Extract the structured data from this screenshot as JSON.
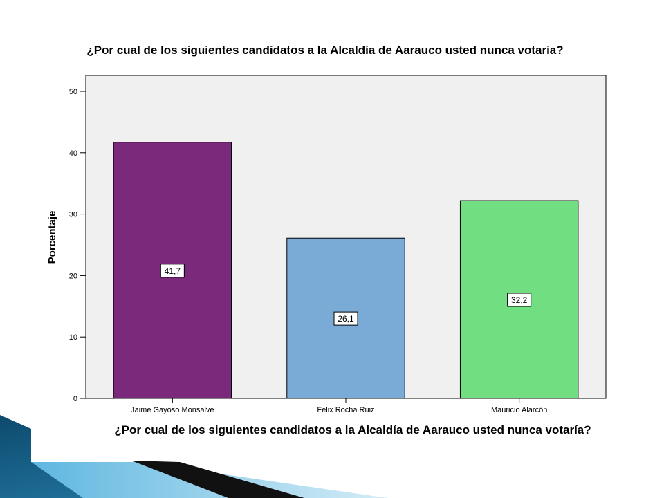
{
  "chart_data": {
    "type": "bar",
    "title": "¿Por cual de los siguientes candidatos a la Alcaldía de Aarauco usted nunca votaría?",
    "xlabel": "¿Por cual de los siguientes candidatos a la Alcaldía de Aarauco usted nunca votaría?",
    "ylabel": "Porcentaje",
    "categories": [
      "Jaime Gayoso Monsalve",
      "Felix Rocha Ruiz",
      "Mauricio Alarcón"
    ],
    "values": [
      41.7,
      26.1,
      32.2
    ],
    "data_labels": [
      "41,7",
      "26,1",
      "32,2"
    ],
    "bar_colors": [
      "#7b2a7b",
      "#7aaad6",
      "#72de82"
    ],
    "ylim": [
      0,
      50
    ],
    "yticks": [
      "0",
      "10",
      "20",
      "30",
      "40",
      "50"
    ],
    "plot_background": "#f0f0f0",
    "grid": false
  }
}
